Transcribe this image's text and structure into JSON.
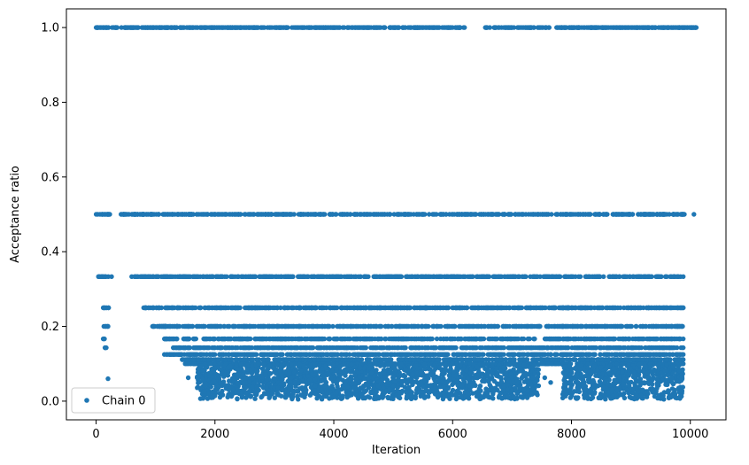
{
  "chart_data": {
    "type": "scatter",
    "title": "",
    "xlabel": "Iteration",
    "ylabel": "Acceptance ratio",
    "xlim": [
      -500,
      10600
    ],
    "ylim": [
      -0.05,
      1.05
    ],
    "x_ticks": [
      0,
      2000,
      4000,
      6000,
      8000,
      10000
    ],
    "x_tick_labels": [
      "0",
      "2000",
      "4000",
      "6000",
      "8000",
      "10000"
    ],
    "y_ticks": [
      0.0,
      0.2,
      0.4,
      0.6,
      0.8,
      1.0
    ],
    "y_tick_labels": [
      "0.0",
      "0.2",
      "0.4",
      "0.6",
      "0.8",
      "1.0"
    ],
    "grid": false,
    "legend": {
      "placement": "bottom-left"
    },
    "series": [
      {
        "name": "Chain 0",
        "color": "#1f77b4",
        "marker": "circle",
        "levels": [
          {
            "y": 1.0,
            "x_ranges": [
              [
                0,
                6200
              ],
              [
                6550,
                10100
              ]
            ]
          },
          {
            "y": 0.5,
            "x_ranges": [
              [
                0,
                230
              ],
              [
                420,
                9900
              ],
              [
                10060,
                10060
              ]
            ]
          },
          {
            "y": 0.3333,
            "x_ranges": [
              [
                40,
                260
              ],
              [
                600,
                9880
              ]
            ]
          },
          {
            "y": 0.25,
            "x_ranges": [
              [
                120,
                210
              ],
              [
                800,
                9880
              ]
            ]
          },
          {
            "y": 0.2,
            "x_ranges": [
              [
                130,
                200
              ],
              [
                950,
                9870
              ]
            ]
          },
          {
            "y": 0.1667,
            "x_ranges": [
              [
                120,
                140
              ],
              [
                1150,
                9880
              ]
            ]
          },
          {
            "y": 0.1429,
            "x_ranges": [
              [
                150,
                170
              ],
              [
                1300,
                9880
              ]
            ]
          },
          {
            "y": 0.125,
            "x_ranges": [
              [
                1150,
                9880
              ]
            ]
          },
          {
            "y": 0.1111,
            "x_ranges": [
              [
                1450,
                9880
              ]
            ]
          },
          {
            "y": 0.1,
            "x_ranges": [
              [
                1500,
                9880
              ]
            ]
          }
        ],
        "scatter_band": {
          "x_ranges": [
            [
              1700,
              7450
            ],
            [
              7850,
              9880
            ]
          ],
          "y_range": [
            0.005,
            0.1
          ]
        },
        "extra_points": [
          [
            200,
            0.06
          ],
          [
            1550,
            0.0625
          ],
          [
            1700,
            0.0625
          ],
          [
            7550,
            0.0625
          ],
          [
            7650,
            0.05
          ]
        ]
      }
    ]
  }
}
